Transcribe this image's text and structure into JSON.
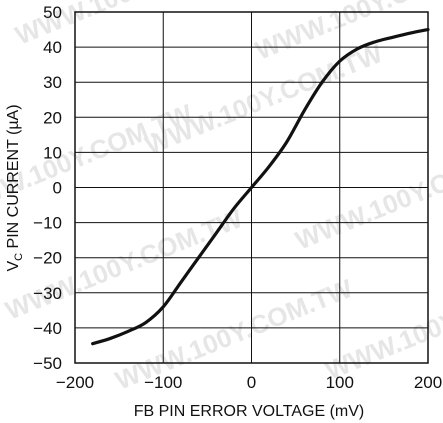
{
  "chart_data": {
    "type": "line",
    "title": "",
    "xlabel": "FB PIN ERROR VOLTAGE (mV)",
    "ylabel": {
      "main": "V",
      "sub": "C",
      "rest": " PIN CURRENT (µA)"
    },
    "xlim": [
      -200,
      200
    ],
    "ylim": [
      -50,
      50
    ],
    "x_ticks": [
      -200,
      -100,
      0,
      100,
      200
    ],
    "x_tick_labels": [
      "−200",
      "−100",
      "0",
      "100",
      "200"
    ],
    "y_ticks": [
      50,
      40,
      30,
      20,
      10,
      0,
      -10,
      -20,
      -30,
      -40,
      -50
    ],
    "y_tick_labels": [
      "50",
      "40",
      "30",
      "20",
      "10",
      "0",
      "−10",
      "−20",
      "−30",
      "−40",
      "−50"
    ],
    "grid": true,
    "series": [
      {
        "x": [
          -180,
          -160,
          -140,
          -120,
          -100,
          -80,
          -60,
          -40,
          -20,
          0,
          20,
          40,
          60,
          80,
          100,
          120,
          140,
          160,
          180,
          200
        ],
        "y": [
          -44.5,
          -43,
          -41,
          -38.5,
          -34,
          -27,
          -20,
          -13,
          -6,
          0,
          6,
          13,
          22,
          30,
          36,
          39.5,
          41.5,
          42.8,
          44,
          45
        ]
      }
    ],
    "watermark_text": "WWW.100Y.COM.TW"
  },
  "colors": {
    "line": "#111111",
    "grid": "#111111",
    "axis_frame": "#111111",
    "text": "#111111",
    "watermark": "#e6e6e6"
  }
}
